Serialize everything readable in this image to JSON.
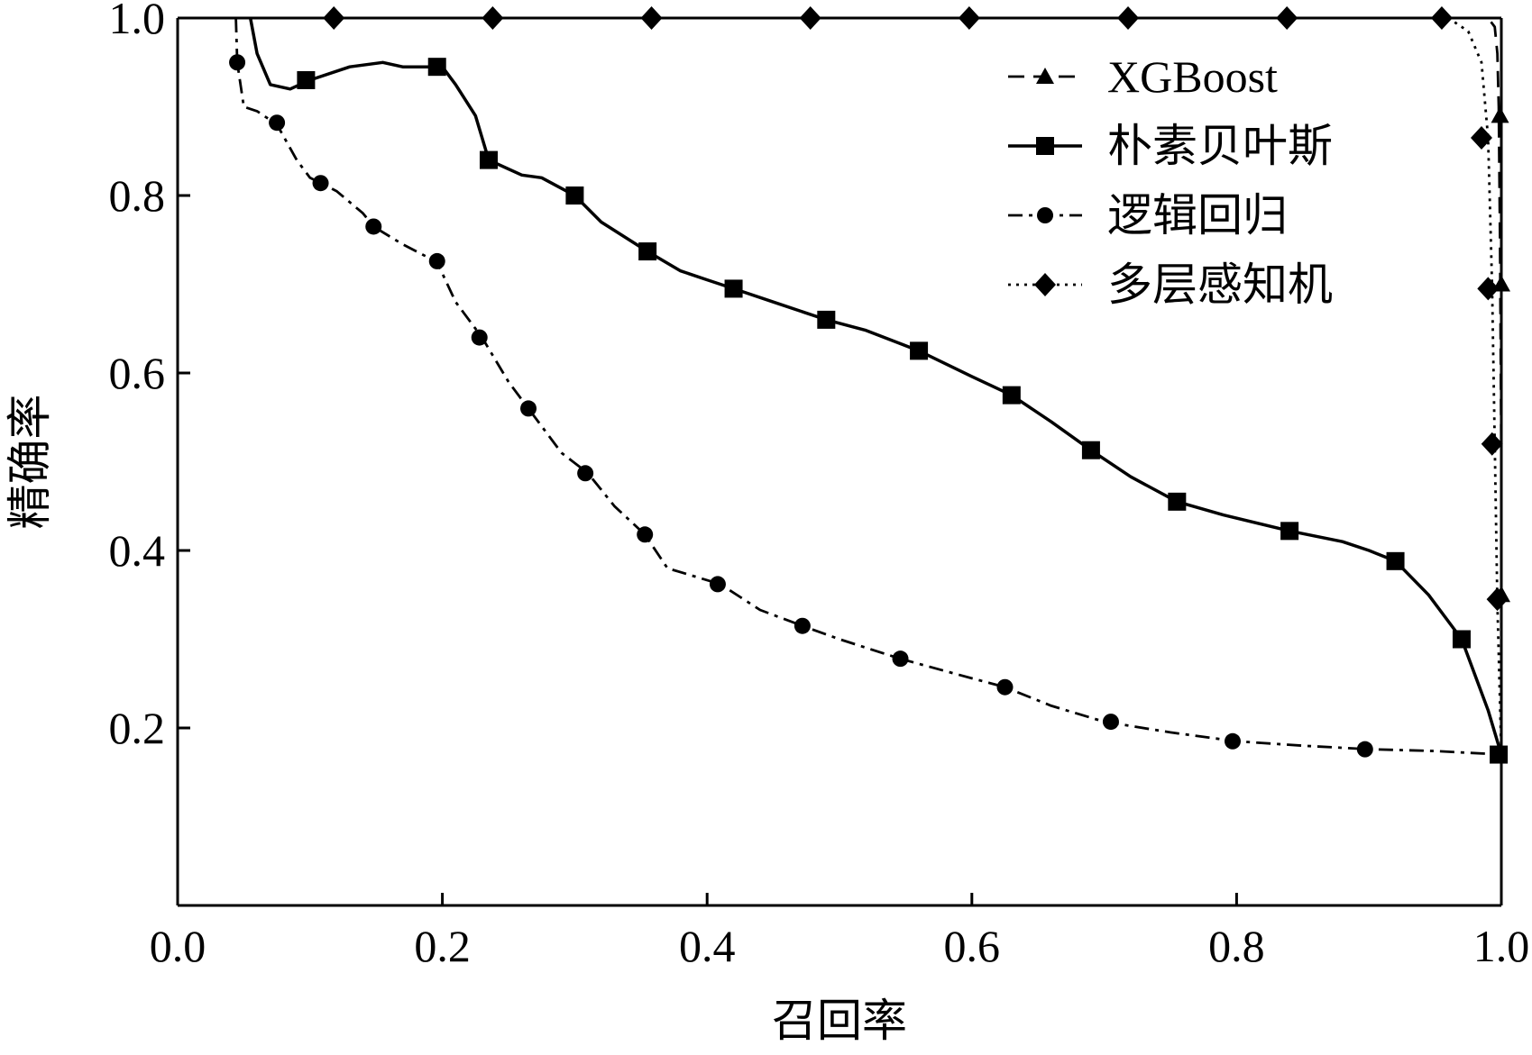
{
  "chart_data": {
    "type": "line",
    "title": "",
    "xlabel": "召回率",
    "ylabel": "精确率",
    "xlim": [
      0.0,
      1.0
    ],
    "ylim": [
      0.0,
      1.0
    ],
    "x_ticks": [
      "0.0",
      "0.2",
      "0.4",
      "0.6",
      "0.8",
      "1.0"
    ],
    "y_ticks": [
      "0.2",
      "0.4",
      "0.6",
      "0.8",
      "1.0"
    ],
    "grid": false,
    "legend_position": "top-right",
    "series": [
      {
        "name": "XGBoost",
        "line_style": "dashed",
        "marker": "triangle",
        "points": [
          [
            0.04,
            1.0
          ],
          [
            0.99,
            1.0
          ],
          [
            0.995,
            0.99
          ],
          [
            0.997,
            0.96
          ],
          [
            0.998,
            0.9
          ],
          [
            0.999,
            0.75
          ],
          [
            1.0,
            0.5
          ],
          [
            1.0,
            0.17
          ]
        ],
        "marker_points": [
          [
            0.999,
            0.89
          ],
          [
            1.0,
            0.7
          ],
          [
            1.0,
            0.35
          ]
        ]
      },
      {
        "name": "朴素贝叶斯",
        "line_style": "solid",
        "marker": "square",
        "points": [
          [
            0.055,
            1.0
          ],
          [
            0.06,
            0.96
          ],
          [
            0.07,
            0.925
          ],
          [
            0.085,
            0.92
          ],
          [
            0.1,
            0.93
          ],
          [
            0.13,
            0.945
          ],
          [
            0.155,
            0.95
          ],
          [
            0.17,
            0.945
          ],
          [
            0.2,
            0.945
          ],
          [
            0.21,
            0.925
          ],
          [
            0.225,
            0.89
          ],
          [
            0.235,
            0.84
          ],
          [
            0.26,
            0.823
          ],
          [
            0.275,
            0.82
          ],
          [
            0.3,
            0.8
          ],
          [
            0.32,
            0.77
          ],
          [
            0.355,
            0.737
          ],
          [
            0.38,
            0.715
          ],
          [
            0.4,
            0.705
          ],
          [
            0.42,
            0.695
          ],
          [
            0.45,
            0.68
          ],
          [
            0.49,
            0.66
          ],
          [
            0.52,
            0.648
          ],
          [
            0.56,
            0.625
          ],
          [
            0.6,
            0.596
          ],
          [
            0.63,
            0.575
          ],
          [
            0.66,
            0.545
          ],
          [
            0.69,
            0.513
          ],
          [
            0.72,
            0.483
          ],
          [
            0.755,
            0.455
          ],
          [
            0.79,
            0.44
          ],
          [
            0.84,
            0.422
          ],
          [
            0.88,
            0.41
          ],
          [
            0.9,
            0.4
          ],
          [
            0.92,
            0.388
          ],
          [
            0.945,
            0.35
          ],
          [
            0.97,
            0.3
          ],
          [
            0.99,
            0.22
          ],
          [
            1.0,
            0.17
          ]
        ],
        "marker_points": [
          [
            0.097,
            0.93
          ],
          [
            0.196,
            0.945
          ],
          [
            0.235,
            0.84
          ],
          [
            0.3,
            0.8
          ],
          [
            0.355,
            0.737
          ],
          [
            0.42,
            0.695
          ],
          [
            0.49,
            0.66
          ],
          [
            0.56,
            0.625
          ],
          [
            0.63,
            0.575
          ],
          [
            0.69,
            0.513
          ],
          [
            0.755,
            0.455
          ],
          [
            0.84,
            0.422
          ],
          [
            0.92,
            0.388
          ],
          [
            0.97,
            0.3
          ],
          [
            0.998,
            0.17
          ]
        ]
      },
      {
        "name": "逻辑回归",
        "line_style": "dash-dot",
        "marker": "circle",
        "points": [
          [
            0.044,
            1.0
          ],
          [
            0.045,
            0.95
          ],
          [
            0.05,
            0.9
          ],
          [
            0.06,
            0.895
          ],
          [
            0.075,
            0.88
          ],
          [
            0.09,
            0.84
          ],
          [
            0.1,
            0.82
          ],
          [
            0.12,
            0.805
          ],
          [
            0.14,
            0.78
          ],
          [
            0.148,
            0.765
          ],
          [
            0.17,
            0.745
          ],
          [
            0.196,
            0.725
          ],
          [
            0.21,
            0.68
          ],
          [
            0.23,
            0.64
          ],
          [
            0.25,
            0.59
          ],
          [
            0.265,
            0.56
          ],
          [
            0.29,
            0.51
          ],
          [
            0.31,
            0.487
          ],
          [
            0.33,
            0.45
          ],
          [
            0.353,
            0.418
          ],
          [
            0.37,
            0.38
          ],
          [
            0.41,
            0.362
          ],
          [
            0.44,
            0.333
          ],
          [
            0.472,
            0.315
          ],
          [
            0.5,
            0.3
          ],
          [
            0.546,
            0.278
          ],
          [
            0.59,
            0.26
          ],
          [
            0.625,
            0.246
          ],
          [
            0.66,
            0.225
          ],
          [
            0.7,
            0.207
          ],
          [
            0.75,
            0.195
          ],
          [
            0.8,
            0.185
          ],
          [
            0.85,
            0.18
          ],
          [
            0.9,
            0.176
          ],
          [
            0.95,
            0.174
          ],
          [
            1.0,
            0.17
          ]
        ],
        "marker_points": [
          [
            0.045,
            0.95
          ],
          [
            0.075,
            0.882
          ],
          [
            0.108,
            0.814
          ],
          [
            0.148,
            0.765
          ],
          [
            0.196,
            0.726
          ],
          [
            0.228,
            0.64
          ],
          [
            0.265,
            0.56
          ],
          [
            0.308,
            0.487
          ],
          [
            0.353,
            0.418
          ],
          [
            0.408,
            0.362
          ],
          [
            0.472,
            0.315
          ],
          [
            0.546,
            0.278
          ],
          [
            0.625,
            0.246
          ],
          [
            0.705,
            0.207
          ],
          [
            0.797,
            0.185
          ],
          [
            0.897,
            0.176
          ]
        ]
      },
      {
        "name": "多层感知机",
        "line_style": "dotted",
        "marker": "diamond",
        "points": [
          [
            0.04,
            1.0
          ],
          [
            0.96,
            1.0
          ],
          [
            0.975,
            0.985
          ],
          [
            0.985,
            0.95
          ],
          [
            0.99,
            0.865
          ],
          [
            0.993,
            0.7
          ],
          [
            0.995,
            0.52
          ],
          [
            0.997,
            0.34
          ],
          [
            1.0,
            0.17
          ]
        ],
        "marker_points": [
          [
            0.118,
            1.0
          ],
          [
            0.238,
            1.0
          ],
          [
            0.358,
            1.0
          ],
          [
            0.478,
            1.0
          ],
          [
            0.598,
            1.0
          ],
          [
            0.718,
            1.0
          ],
          [
            0.838,
            1.0
          ],
          [
            0.955,
            1.0
          ],
          [
            0.985,
            0.865
          ],
          [
            0.99,
            0.695
          ],
          [
            0.993,
            0.52
          ],
          [
            0.997,
            0.345
          ]
        ]
      }
    ]
  }
}
